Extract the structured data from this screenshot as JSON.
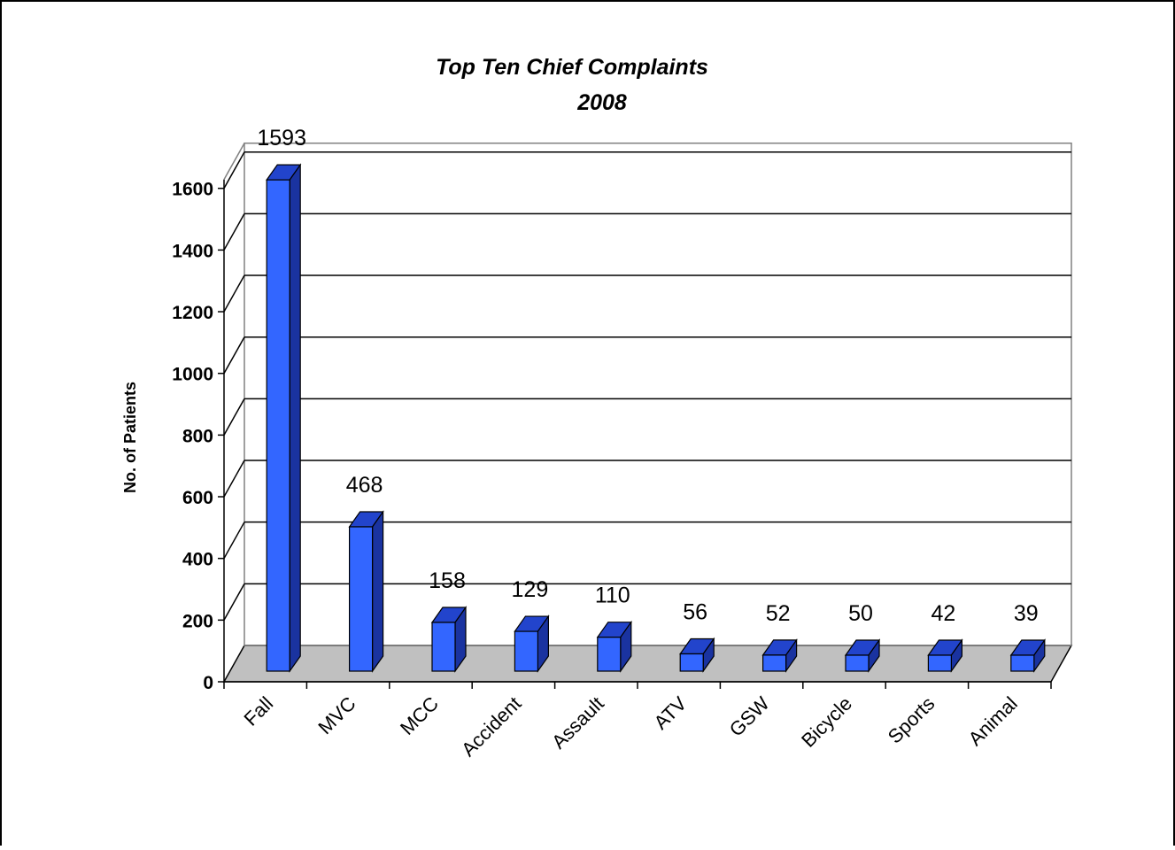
{
  "chart_data": {
    "type": "bar",
    "title": "Top Ten Chief Complaints",
    "subtitle": "2008",
    "ylabel": "No. of Patients",
    "xlabel": "",
    "categories": [
      "Fall",
      "MVC",
      "MCC",
      "Accident",
      "Assault",
      "ATV",
      "GSW",
      "Bicycle",
      "Sports",
      "Animal"
    ],
    "values": [
      1593,
      468,
      158,
      129,
      110,
      56,
      52,
      50,
      42,
      39
    ],
    "yticks": [
      "0",
      "200",
      "400",
      "600",
      "800",
      "1000",
      "1200",
      "1400",
      "1600"
    ],
    "ylim": [
      0,
      1600
    ],
    "grid": true,
    "legend": "none",
    "colors": {
      "bar_front": "#3366FF",
      "bar_top": "#2244CC",
      "bar_side": "#1A33A0",
      "floor": "#C0C0C0",
      "gridline": "#000000"
    }
  }
}
